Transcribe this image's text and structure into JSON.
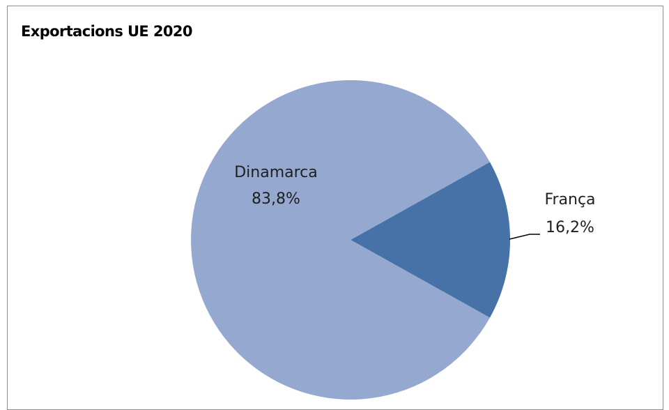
{
  "chart_data": {
    "type": "pie",
    "title": "Exportacions UE 2020",
    "slices": [
      {
        "label": "Dinamarca",
        "value": 83.8,
        "value_label": "83,8%",
        "color": "#95a9d0"
      },
      {
        "label": "França",
        "value": 16.2,
        "value_label": "16,2%",
        "color": "#4672a8"
      }
    ],
    "legend": "none",
    "labels": "outside-with-leader-line for small slice"
  }
}
